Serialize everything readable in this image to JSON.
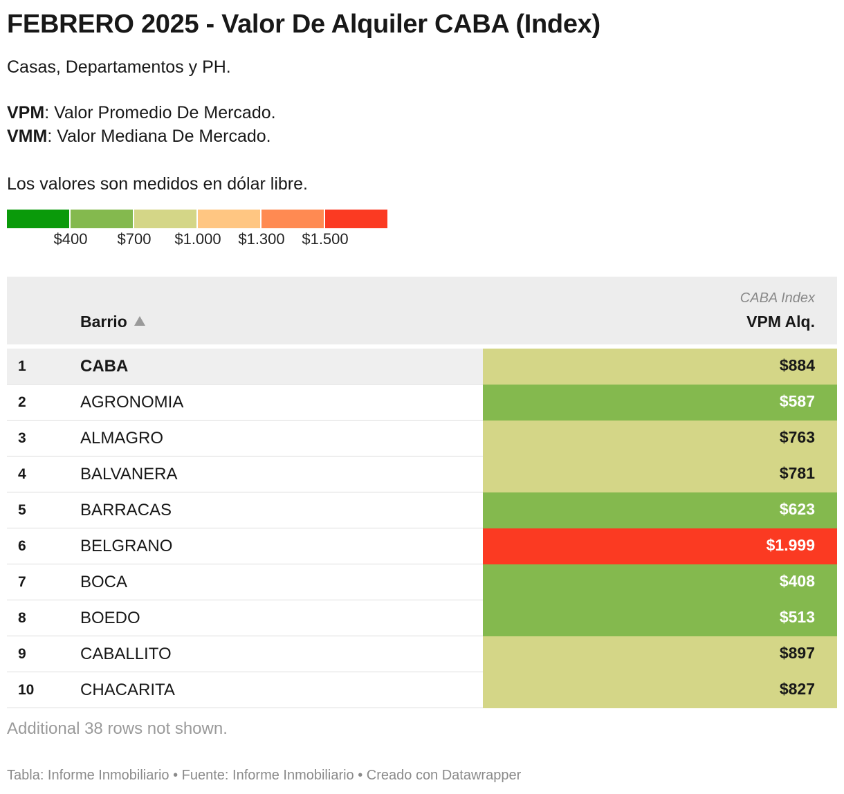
{
  "header": {
    "title": "FEBRERO 2025 - Valor De Alquiler CABA (Index)",
    "subtitle": "Casas, Departamentos y PH.",
    "def1_key": "VPM",
    "def1_text": ": Valor Promedio De Mercado.",
    "def2_key": "VMM",
    "def2_text": ": Valor Mediana De Mercado.",
    "note": "Los valores son medidos en dólar libre."
  },
  "legend": {
    "colors": [
      "#0a9a0a",
      "#84b94e",
      "#d4d687",
      "#ffc682",
      "#ff8a52",
      "#fb3a22"
    ],
    "labels": [
      "$400",
      "$700",
      "$1.000",
      "$1.300",
      "$1.500"
    ]
  },
  "table_header": {
    "col1": "Barrio",
    "group": "CABA Index",
    "col2": "VPM Alq."
  },
  "chart_data": {
    "type": "table",
    "columns": [
      "Barrio",
      "VPM Alq."
    ],
    "rows": [
      {
        "rank": "1",
        "barrio": "CABA",
        "value": 884,
        "label": "$884",
        "color": "#d4d687",
        "text_color": "#181818"
      },
      {
        "rank": "2",
        "barrio": "AGRONOMIA",
        "value": 587,
        "label": "$587",
        "color": "#84b94e",
        "text_color": "#ffffff"
      },
      {
        "rank": "3",
        "barrio": "ALMAGRO",
        "value": 763,
        "label": "$763",
        "color": "#d4d687",
        "text_color": "#181818"
      },
      {
        "rank": "4",
        "barrio": "BALVANERA",
        "value": 781,
        "label": "$781",
        "color": "#d4d687",
        "text_color": "#181818"
      },
      {
        "rank": "5",
        "barrio": "BARRACAS",
        "value": 623,
        "label": "$623",
        "color": "#84b94e",
        "text_color": "#ffffff"
      },
      {
        "rank": "6",
        "barrio": "BELGRANO",
        "value": 1999,
        "label": "$1.999",
        "color": "#fb3a22",
        "text_color": "#ffffff"
      },
      {
        "rank": "7",
        "barrio": "BOCA",
        "value": 408,
        "label": "$408",
        "color": "#84b94e",
        "text_color": "#ffffff"
      },
      {
        "rank": "8",
        "barrio": "BOEDO",
        "value": 513,
        "label": "$513",
        "color": "#84b94e",
        "text_color": "#ffffff"
      },
      {
        "rank": "9",
        "barrio": "CABALLITO",
        "value": 897,
        "label": "$897",
        "color": "#d4d687",
        "text_color": "#181818"
      },
      {
        "rank": "10",
        "barrio": "CHACARITA",
        "value": 827,
        "label": "$827",
        "color": "#d4d687",
        "text_color": "#181818"
      }
    ]
  },
  "more_rows": "Additional 38 rows not shown.",
  "footer": "Tabla: Informe Inmobiliario • Fuente: Informe Inmobiliario • Creado con Datawrapper"
}
